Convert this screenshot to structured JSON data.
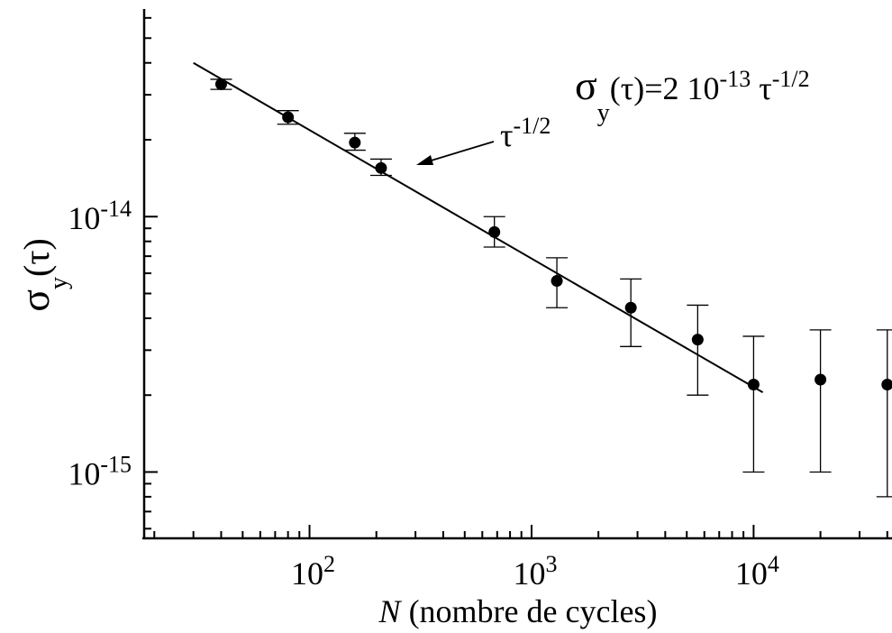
{
  "chart_data": {
    "type": "scatter",
    "title": "",
    "xlabel_italic": "N",
    "xlabel_rest": " (nombre de cycles)",
    "ylabel": {
      "base": "σ",
      "sub": "y",
      "rest": "(τ)"
    },
    "x_scale": "log",
    "y_scale": "log",
    "xlim": [
      18,
      42000
    ],
    "ylim": [
      5.5e-16,
      6.5e-14
    ],
    "x_ticks": [
      {
        "value": 100,
        "base": "10",
        "exp": "2"
      },
      {
        "value": 1000,
        "base": "10",
        "exp": "3"
      },
      {
        "value": 10000,
        "base": "10",
        "exp": "4"
      }
    ],
    "y_ticks": [
      {
        "value": 1e-14,
        "base": "10",
        "exp": "-14"
      },
      {
        "value": 1e-15,
        "base": "10",
        "exp": "-15"
      }
    ],
    "grid": false,
    "series": [
      {
        "points": [
          {
            "x": 40,
            "y": 3.3e-14,
            "err_low": 3.15e-14,
            "err_high": 3.45e-14
          },
          {
            "x": 80,
            "y": 2.45e-14,
            "err_low": 2.3e-14,
            "err_high": 2.6e-14
          },
          {
            "x": 160,
            "y": 1.95e-14,
            "err_low": 1.82e-14,
            "err_high": 2.12e-14
          },
          {
            "x": 210,
            "y": 1.55e-14,
            "err_low": 1.45e-14,
            "err_high": 1.68e-14
          },
          {
            "x": 680,
            "y": 8.7e-15,
            "err_low": 7.6e-15,
            "err_high": 1e-14
          },
          {
            "x": 1300,
            "y": 5.6e-15,
            "err_low": 4.4e-15,
            "err_high": 6.9e-15
          },
          {
            "x": 2800,
            "y": 4.4e-15,
            "err_low": 3.1e-15,
            "err_high": 5.7e-15
          },
          {
            "x": 5600,
            "y": 3.3e-15,
            "err_low": 2e-15,
            "err_high": 4.5e-15
          },
          {
            "x": 10000,
            "y": 2.2e-15,
            "err_low": 1e-15,
            "err_high": 3.4e-15
          },
          {
            "x": 20000,
            "y": 2.3e-15,
            "err_low": 1e-15,
            "err_high": 3.6e-15
          },
          {
            "x": 40000,
            "y": 2.2e-15,
            "err_low": 8e-16,
            "err_high": 3.6e-15
          }
        ]
      }
    ],
    "fit_line": {
      "x": [
        30,
        11000
      ],
      "y": [
        4e-14,
        2.05e-15
      ]
    },
    "annotations": [
      {
        "id": "formula",
        "parts": [
          "σ",
          "y",
          "(τ)=2 10",
          "-13",
          " τ",
          "-1/2"
        ]
      },
      {
        "id": "slope",
        "parts": [
          "τ",
          "-1/2"
        ]
      }
    ]
  }
}
